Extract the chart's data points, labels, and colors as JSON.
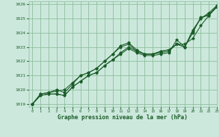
{
  "title": "Graphe pression niveau de la mer (hPa)",
  "background_color": "#cce8dc",
  "grid_color": "#88bb99",
  "line_color": "#1a5c28",
  "marker_color": "#1a5c28",
  "xlim": [
    -0.5,
    23
  ],
  "ylim": [
    1018.8,
    1026.2
  ],
  "yticks": [
    1019,
    1020,
    1021,
    1022,
    1023,
    1024,
    1025,
    1026
  ],
  "xticks": [
    0,
    1,
    2,
    3,
    4,
    5,
    6,
    7,
    8,
    9,
    10,
    11,
    12,
    13,
    14,
    15,
    16,
    17,
    18,
    19,
    20,
    21,
    22,
    23
  ],
  "series": [
    [
      1019.0,
      1019.6,
      1019.7,
      1019.7,
      1019.6,
      1020.2,
      1020.6,
      1021.0,
      1021.2,
      1021.7,
      1022.1,
      1022.5,
      1022.9,
      1022.6,
      1022.4,
      1022.4,
      1022.5,
      1022.6,
      1023.5,
      1023.0,
      1024.2,
      1025.0,
      1025.4,
      1025.9
    ],
    [
      1019.0,
      1019.6,
      1019.7,
      1019.7,
      1019.6,
      1020.2,
      1020.6,
      1021.0,
      1021.2,
      1021.7,
      1022.1,
      1022.6,
      1023.0,
      1022.7,
      1022.5,
      1022.5,
      1022.6,
      1022.7,
      1023.2,
      1023.0,
      1024.1,
      1025.0,
      1025.3,
      1025.8
    ],
    [
      1019.0,
      1019.7,
      1019.8,
      1019.9,
      1020.0,
      1020.5,
      1021.0,
      1021.2,
      1021.5,
      1022.0,
      1022.5,
      1023.0,
      1023.2,
      1022.7,
      1022.5,
      1022.5,
      1022.7,
      1022.8,
      1023.2,
      1023.0,
      1024.0,
      1025.1,
      1025.2,
      1025.8
    ],
    [
      1019.0,
      1019.7,
      1019.8,
      1020.0,
      1019.8,
      1020.4,
      1021.0,
      1021.2,
      1021.5,
      1022.0,
      1022.5,
      1023.1,
      1023.3,
      1022.8,
      1022.5,
      1022.5,
      1022.7,
      1022.8,
      1023.2,
      1023.2,
      1023.6,
      1024.5,
      1025.2,
      1025.9
    ]
  ]
}
